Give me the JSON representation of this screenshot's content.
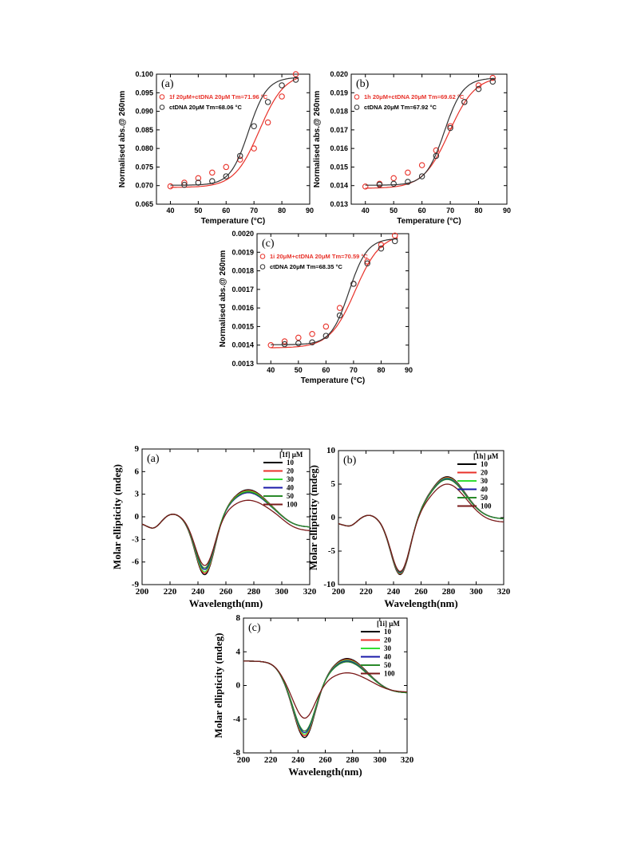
{
  "chart_data": [
    {
      "type": "scatter",
      "panel_label": "(a)",
      "xlabel": "Temperature (°C)",
      "ylabel": "Normalised abs.@ 260nm",
      "xlim": [
        35,
        90
      ],
      "ylim": [
        0.065,
        0.1
      ],
      "xticks": [
        40,
        50,
        60,
        70,
        80,
        90
      ],
      "yticks": [
        0.065,
        0.07,
        0.075,
        0.08,
        0.085,
        0.09,
        0.095,
        0.1
      ],
      "ytick_decimals": 3,
      "grid": false,
      "legend_position": "top-left",
      "series": [
        {
          "name": "1f 20μM+ctDNA 20μM Tm=71.96 °C",
          "color": "#e8322a",
          "x": [
            40,
            45,
            50,
            55,
            60,
            65,
            70,
            75,
            80,
            85
          ],
          "y": [
            0.0698,
            0.0708,
            0.072,
            0.0735,
            0.075,
            0.077,
            0.08,
            0.087,
            0.094,
            0.1
          ],
          "fit": {
            "min": 0.0695,
            "max": 0.1003,
            "tm": 71.96,
            "slope": 4.5
          }
        },
        {
          "name": "ctDNA 20μM Tm=68.06 °C",
          "color": "#333333",
          "x": [
            45,
            50,
            55,
            60,
            65,
            70,
            75,
            80,
            85
          ],
          "y": [
            0.0702,
            0.0708,
            0.0712,
            0.0725,
            0.078,
            0.086,
            0.0925,
            0.097,
            0.0985
          ],
          "fit": {
            "min": 0.0701,
            "max": 0.0992,
            "tm": 68.06,
            "slope": 3.3
          }
        }
      ]
    },
    {
      "type": "scatter",
      "panel_label": "(b)",
      "xlabel": "Temperature (°C)",
      "ylabel": "Normalised abs.@ 260nm",
      "xlim": [
        35,
        90
      ],
      "ylim": [
        0.013,
        0.02
      ],
      "xticks": [
        40,
        50,
        60,
        70,
        80,
        90
      ],
      "yticks": [
        0.013,
        0.014,
        0.015,
        0.016,
        0.017,
        0.018,
        0.019,
        0.02
      ],
      "ytick_decimals": 3,
      "grid": false,
      "legend_position": "top-left",
      "series": [
        {
          "name": "1h 20μM+ctDNA 20μM Tm=69.62 °C",
          "color": "#e8322a",
          "x": [
            40,
            45,
            50,
            55,
            60,
            65,
            70,
            75,
            80,
            85
          ],
          "y": [
            0.01395,
            0.0141,
            0.0144,
            0.0147,
            0.0151,
            0.0159,
            0.0172,
            0.0185,
            0.0194,
            0.0198
          ],
          "fit": {
            "min": 0.01385,
            "max": 0.0199,
            "tm": 69.62,
            "slope": 4.6
          }
        },
        {
          "name": "ctDNA 20μM Tm=67.92 °C",
          "color": "#333333",
          "x": [
            45,
            50,
            55,
            60,
            65,
            70,
            75,
            80,
            85
          ],
          "y": [
            0.01405,
            0.0141,
            0.0142,
            0.0145,
            0.0156,
            0.0171,
            0.0185,
            0.0192,
            0.0196
          ],
          "fit": {
            "min": 0.01402,
            "max": 0.0198,
            "tm": 67.92,
            "slope": 3.3
          }
        }
      ]
    },
    {
      "type": "scatter",
      "panel_label": "(c)",
      "xlabel": "Temperature (°C)",
      "ylabel": "Normalised abs.@ 260nm",
      "xlim": [
        35,
        90
      ],
      "ylim": [
        0.0013,
        0.002
      ],
      "xticks": [
        40,
        50,
        60,
        70,
        80,
        90
      ],
      "yticks": [
        0.0013,
        0.0014,
        0.0015,
        0.0016,
        0.0017,
        0.0018,
        0.0019,
        0.002
      ],
      "ytick_decimals": 4,
      "grid": false,
      "legend_position": "top-left",
      "series": [
        {
          "name": "1i 20μM+ctDNA 20μM Tm=70.59 °C",
          "color": "#e8322a",
          "x": [
            40,
            45,
            50,
            55,
            60,
            65,
            70,
            75,
            80,
            85
          ],
          "y": [
            0.0014,
            0.00142,
            0.00144,
            0.00146,
            0.0015,
            0.0016,
            0.00173,
            0.00185,
            0.00194,
            0.00199
          ],
          "fit": {
            "min": 0.001385,
            "max": 0.002,
            "tm": 70.59,
            "slope": 4.6
          }
        },
        {
          "name": "ctDNA 20μM Tm=68.35 °C",
          "color": "#333333",
          "x": [
            45,
            50,
            55,
            60,
            65,
            70,
            75,
            80,
            85
          ],
          "y": [
            0.001405,
            0.00141,
            0.001415,
            0.00145,
            0.00156,
            0.00173,
            0.00184,
            0.00192,
            0.00196
          ],
          "fit": {
            "min": 0.001402,
            "max": 0.001975,
            "tm": 68.35,
            "slope": 3.3
          }
        }
      ]
    },
    {
      "type": "line",
      "panel_label": "(a)",
      "xlabel": "Wavelength(nm)",
      "ylabel": "Molar ellipticity (mdeg)",
      "xlim": [
        200,
        320
      ],
      "ylim": [
        -9,
        9
      ],
      "xticks": [
        200,
        220,
        240,
        260,
        280,
        300,
        320
      ],
      "yticks": [
        -9,
        -6,
        -3,
        0,
        3,
        6,
        9
      ],
      "grid": false,
      "legend_title": "[1f] μM",
      "legend_position": "top-right",
      "series": [
        {
          "name": "10",
          "color": "#000000",
          "min": -7.9,
          "max": 3.6,
          "shoulder": -1.8,
          "end": -1.4
        },
        {
          "name": "20",
          "color": "#e8322a",
          "min": -7.7,
          "max": 3.5,
          "shoulder": -1.8,
          "end": -1.4
        },
        {
          "name": "30",
          "color": "#33dd33",
          "min": -7.5,
          "max": 3.4,
          "shoulder": -1.8,
          "end": -1.4
        },
        {
          "name": "40",
          "color": "#1a1aa8",
          "min": -7.2,
          "max": 3.2,
          "shoulder": -1.8,
          "end": -1.4
        },
        {
          "name": "50",
          "color": "#2a8a2a",
          "min": -7.0,
          "max": 3.3,
          "shoulder": -1.8,
          "end": -1.4
        },
        {
          "name": "100",
          "color": "#7a1a1a",
          "min": -6.6,
          "max": 2.2,
          "shoulder": -1.8,
          "end": -1.9
        }
      ]
    },
    {
      "type": "line",
      "panel_label": "(b)",
      "xlabel": "Wavelength(nm)",
      "ylabel": "Molar ellipticity (mdeg)",
      "xlim": [
        200,
        320
      ],
      "ylim": [
        -10,
        10
      ],
      "xticks": [
        200,
        220,
        240,
        260,
        280,
        300,
        320
      ],
      "yticks": [
        -10,
        -5,
        0,
        5,
        10
      ],
      "grid": false,
      "legend_title": "[1h] μM",
      "legend_position": "top-right",
      "series": [
        {
          "name": "10",
          "color": "#000000",
          "min": -8.7,
          "max": 6.1,
          "shoulder": -1.5,
          "end": -0.2
        },
        {
          "name": "20",
          "color": "#e8322a",
          "min": -8.6,
          "max": 6.0,
          "shoulder": -1.5,
          "end": -0.2
        },
        {
          "name": "30",
          "color": "#33dd33",
          "min": -8.5,
          "max": 5.9,
          "shoulder": -1.5,
          "end": -0.2
        },
        {
          "name": "40",
          "color": "#1a1aa8",
          "min": -8.4,
          "max": 5.8,
          "shoulder": -1.5,
          "end": -0.2
        },
        {
          "name": "50",
          "color": "#2a8a2a",
          "min": -8.3,
          "max": 5.7,
          "shoulder": -1.5,
          "end": -0.2
        },
        {
          "name": "100",
          "color": "#7a1a1a",
          "min": -8.2,
          "max": 5.0,
          "shoulder": -1.5,
          "end": -0.7
        }
      ]
    },
    {
      "type": "line",
      "panel_label": "(c)",
      "xlabel": "Wavelength(nm)",
      "ylabel": "Molar ellipticity (mdeg)",
      "xlim": [
        200,
        320
      ],
      "ylim": [
        -8,
        8
      ],
      "xticks": [
        200,
        220,
        240,
        260,
        280,
        300,
        320
      ],
      "yticks": [
        -8,
        -4,
        0,
        4,
        8
      ],
      "grid": false,
      "legend_title": "[1i] μM",
      "legend_position": "top-right",
      "series": [
        {
          "name": "10",
          "color": "#000000",
          "min": -6.4,
          "max": 3.2,
          "shoulder": 2.9,
          "end": -0.9
        },
        {
          "name": "20",
          "color": "#e8322a",
          "min": -6.2,
          "max": 3.1,
          "shoulder": 2.9,
          "end": -0.9
        },
        {
          "name": "30",
          "color": "#33dd33",
          "min": -6.0,
          "max": 3.0,
          "shoulder": 2.9,
          "end": -0.9
        },
        {
          "name": "40",
          "color": "#1a1aa8",
          "min": -5.8,
          "max": 2.9,
          "shoulder": 2.9,
          "end": -0.9
        },
        {
          "name": "50",
          "color": "#2a8a2a",
          "min": -5.6,
          "max": 2.8,
          "shoulder": 2.9,
          "end": -0.9
        },
        {
          "name": "100",
          "color": "#7a1a1a",
          "min": -4.0,
          "max": 1.5,
          "shoulder": 2.9,
          "end": -0.8
        }
      ]
    }
  ]
}
